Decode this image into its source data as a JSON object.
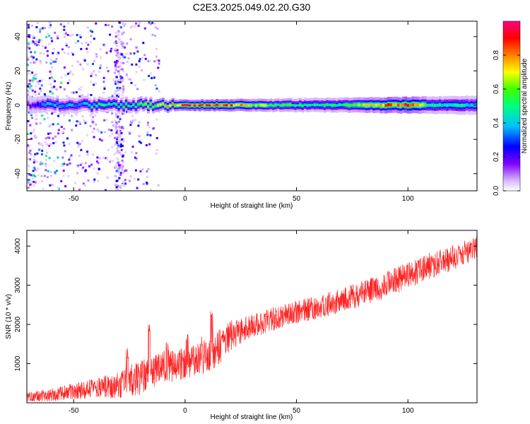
{
  "title": "C2E3.2025.049.02.20.G30",
  "chart_data": [
    {
      "type": "heatmap",
      "title": "C2E3.2025.049.02.20.G30",
      "xlabel": "Height of straight line (km)",
      "ylabel": "Frequency (Hz)",
      "xlim": [
        -71,
        131
      ],
      "ylim": [
        -50,
        49
      ],
      "x_ticks": [
        -50,
        0,
        50,
        100
      ],
      "x_tick_labels": [
        "-50",
        "0",
        "50",
        "100"
      ],
      "y_ticks": [
        -40,
        -20,
        0,
        20,
        40
      ],
      "y_tick_labels": [
        "-40",
        "-20",
        "0",
        "20",
        "40"
      ],
      "colorbar": {
        "label": "Normalized spectral amplitude",
        "range": [
          0,
          1
        ],
        "ticks": [
          0.0,
          0.2,
          0.4,
          0.6,
          0.8
        ],
        "tick_labels": [
          "0.0",
          "0.2",
          "0.4",
          "0.6",
          "0.8"
        ],
        "colors": [
          "#ffffff",
          "#8000ff",
          "#0000ff",
          "#00ffff",
          "#00ff00",
          "#ffff00",
          "#ff8000",
          "#ff0000",
          "#ff00ff"
        ]
      },
      "band": {
        "center_hz": 0,
        "half_width_hz": [
          [
            -71,
            3
          ],
          [
            -20,
            2.5
          ],
          [
            0,
            2
          ],
          [
            50,
            2.5
          ],
          [
            100,
            3
          ],
          [
            131,
            3.5
          ]
        ],
        "amplitude": [
          [
            -71,
            0.15
          ],
          [
            -62,
            0.4
          ],
          [
            -50,
            0.35
          ],
          [
            -40,
            0.45
          ],
          [
            -30,
            0.45
          ],
          [
            -20,
            0.55
          ],
          [
            -10,
            0.7
          ],
          [
            0,
            0.85
          ],
          [
            15,
            0.85
          ],
          [
            30,
            0.65
          ],
          [
            50,
            0.5
          ],
          [
            70,
            0.5
          ],
          [
            90,
            0.8
          ],
          [
            97,
            0.9
          ],
          [
            110,
            0.5
          ],
          [
            131,
            0.4
          ]
        ]
      },
      "noise_region_km": [
        -71,
        -20
      ]
    },
    {
      "type": "line",
      "xlabel": "Height of straight line (km)",
      "ylabel": "SNR (10 * v/v)",
      "xlim": [
        -71,
        131
      ],
      "ylim": [
        0,
        4400
      ],
      "x_ticks": [
        -50,
        0,
        50,
        100
      ],
      "x_tick_labels": [
        "-50",
        "0",
        "50",
        "100"
      ],
      "y_ticks": [
        1000,
        2000,
        3000,
        4000
      ],
      "y_tick_labels": [
        "1000",
        "2000",
        "3000",
        "4000"
      ],
      "color": "#ff2020",
      "trend": [
        [
          -71,
          150
        ],
        [
          -60,
          200
        ],
        [
          -50,
          300
        ],
        [
          -40,
          380
        ],
        [
          -30,
          450
        ],
        [
          -20,
          650
        ],
        [
          -10,
          900
        ],
        [
          0,
          1000
        ],
        [
          10,
          1200
        ],
        [
          15,
          1400
        ],
        [
          20,
          1700
        ],
        [
          30,
          1950
        ],
        [
          40,
          2150
        ],
        [
          50,
          2300
        ],
        [
          60,
          2450
        ],
        [
          70,
          2600
        ],
        [
          80,
          2800
        ],
        [
          90,
          3000
        ],
        [
          100,
          3250
        ],
        [
          110,
          3500
        ],
        [
          120,
          3700
        ],
        [
          131,
          3950
        ]
      ],
      "noise_amplitude": [
        [
          -71,
          120
        ],
        [
          -40,
          250
        ],
        [
          -20,
          450
        ],
        [
          0,
          400
        ],
        [
          15,
          450
        ],
        [
          30,
          300
        ],
        [
          60,
          300
        ],
        [
          100,
          350
        ],
        [
          131,
          300
        ]
      ],
      "spikes": [
        [
          -26,
          1400
        ],
        [
          -16,
          2000
        ],
        [
          -8,
          1600
        ],
        [
          1,
          1800
        ],
        [
          8,
          1700
        ],
        [
          12,
          2400
        ],
        [
          17,
          1800
        ]
      ]
    }
  ]
}
